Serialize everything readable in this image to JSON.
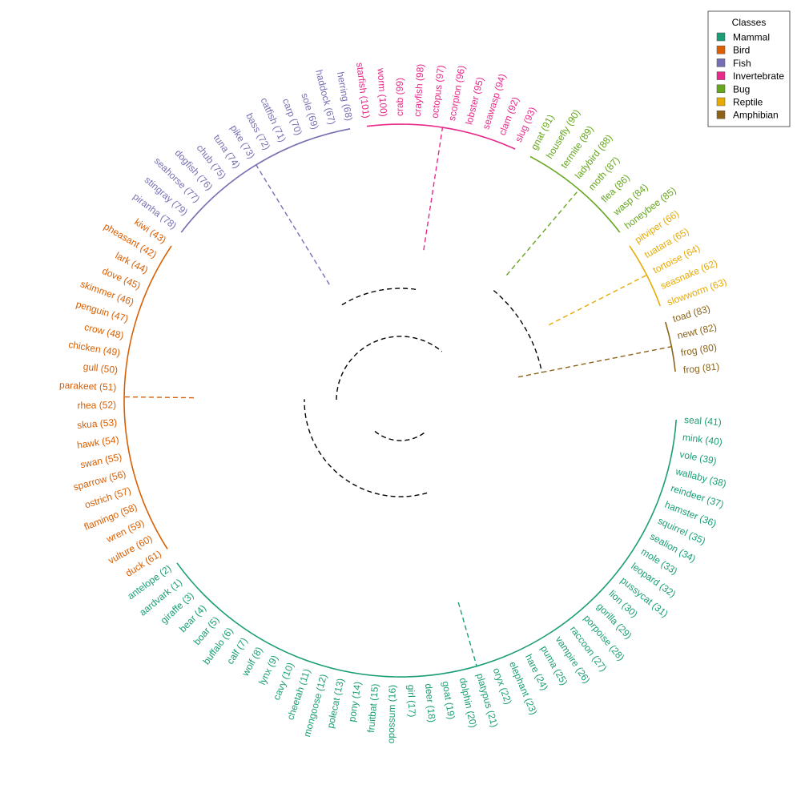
{
  "legend": {
    "title": "Classes",
    "items": [
      {
        "key": "mammal",
        "label": "Mammal",
        "color": "#1B9E77"
      },
      {
        "key": "bird",
        "label": "Bird",
        "color": "#D95F02"
      },
      {
        "key": "fish",
        "label": "Fish",
        "color": "#7570B3"
      },
      {
        "key": "invertebrate",
        "label": "Invertebrate",
        "color": "#E7298A"
      },
      {
        "key": "bug",
        "label": "Bug",
        "color": "#66A61E"
      },
      {
        "key": "reptile",
        "label": "Reptile",
        "color": "#E6AB02"
      },
      {
        "key": "amphibian",
        "label": "Amphibian",
        "color": "#8C6419"
      }
    ]
  },
  "chart_data": {
    "type": "circular-dendrogram",
    "groups": [
      {
        "class": "mammal",
        "leaves": [
          "seal (41)",
          "mink (40)",
          "vole (39)",
          "wallaby (38)",
          "reindeer (37)",
          "hamster (36)",
          "squirrel (35)",
          "sealion (34)",
          "mole (33)",
          "leopard (32)",
          "pussycat (31)",
          "lion (30)",
          "gorilla (29)",
          "porpoise (28)",
          "raccoon (27)",
          "vampire (26)",
          "puma (25)",
          "hare (24)",
          "elephant (23)",
          "oryx (22)",
          "platypus (21)",
          "dolphin (20)",
          "goat (19)",
          "deer (18)",
          "girl (17)",
          "opossum (16)",
          "fruitbat (15)",
          "pony (14)",
          "polecat (13)",
          "mongoose (12)",
          "cheetah (11)",
          "cavy (10)",
          "lynx (9)",
          "wolf (8)",
          "calf (7)",
          "buffalo (6)",
          "boar (5)",
          "bear (4)",
          "giraffe (3)",
          "aardvark (1)",
          "antelope (2)"
        ]
      },
      {
        "class": "bird",
        "leaves": [
          "duck (61)",
          "vulture (60)",
          "wren (59)",
          "flamingo (58)",
          "ostrich (57)",
          "sparrow (56)",
          "swan (55)",
          "hawk (54)",
          "skua (53)",
          "rhea (52)",
          "parakeet (51)",
          "gull (50)",
          "chicken (49)",
          "crow (48)",
          "penguin (47)",
          "skimmer (46)",
          "dove (45)",
          "lark (44)",
          "pheasant (42)",
          "kiwi (43)"
        ]
      },
      {
        "class": "fish",
        "leaves": [
          "piranha (78)",
          "stingray (79)",
          "seahorse (77)",
          "dogfish (76)",
          "chub (75)",
          "tuna (74)",
          "pike (73)",
          "bass (72)",
          "catfish (71)",
          "carp (70)",
          "sole (69)",
          "haddock (67)",
          "herring (68)"
        ]
      },
      {
        "class": "invertebrate",
        "leaves": [
          "starfish (101)",
          "worm (100)",
          "crab (99)",
          "crayfish (98)",
          "octopus (97)",
          "scorpion (96)",
          "lobster (95)",
          "seawasp (94)",
          "clam (92)",
          "slug (93)"
        ]
      },
      {
        "class": "bug",
        "leaves": [
          "gnat (91)",
          "housefly (90)",
          "termite (89)",
          "ladybird (88)",
          "moth (87)",
          "flea (86)",
          "wasp (84)",
          "honeybee (85)"
        ]
      },
      {
        "class": "reptile",
        "leaves": [
          "pitviper (66)",
          "tuatara (65)",
          "tortoise (64)",
          "seasnake (62)",
          "slowworm (63)"
        ]
      },
      {
        "class": "amphibian",
        "leaves": [
          "toad (83)",
          "newt (82)",
          "frog (80)",
          "frog (81)"
        ]
      }
    ]
  }
}
